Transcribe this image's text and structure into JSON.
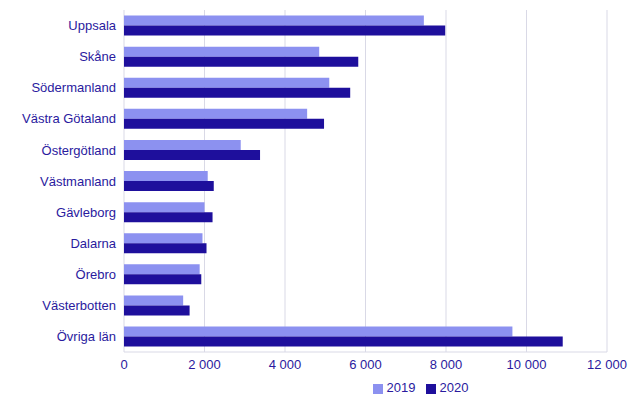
{
  "chart_data": {
    "type": "bar",
    "orientation": "horizontal",
    "categories": [
      "Uppsala",
      "Skåne",
      "Södermanland",
      "Västra Götaland",
      "Östergötland",
      "Västmanland",
      "Gävleborg",
      "Dalarna",
      "Örebro",
      "Västerbotten",
      "Övriga län"
    ],
    "series": [
      {
        "name": "2019",
        "color": "#8c91f0",
        "values": [
          7450,
          4850,
          5100,
          4550,
          2900,
          2080,
          2000,
          1950,
          1880,
          1470,
          9650
        ]
      },
      {
        "name": "2020",
        "color": "#1e0f9c",
        "values": [
          7980,
          5820,
          5620,
          4970,
          3380,
          2230,
          2200,
          2050,
          1920,
          1630,
          10900
        ]
      }
    ],
    "xlim": [
      0,
      12000
    ],
    "xticks": [
      0,
      {
        "value": 2000,
        "label": "2 000"
      },
      {
        "value": 4000,
        "label": "4 000"
      },
      {
        "value": 6000,
        "label": "6 000"
      },
      {
        "value": 8000,
        "label": "8 000"
      },
      {
        "value": 10000,
        "label": "10 000"
      },
      {
        "value": 12000,
        "label": "12 000"
      }
    ],
    "grid": true,
    "legend": "bottom"
  }
}
